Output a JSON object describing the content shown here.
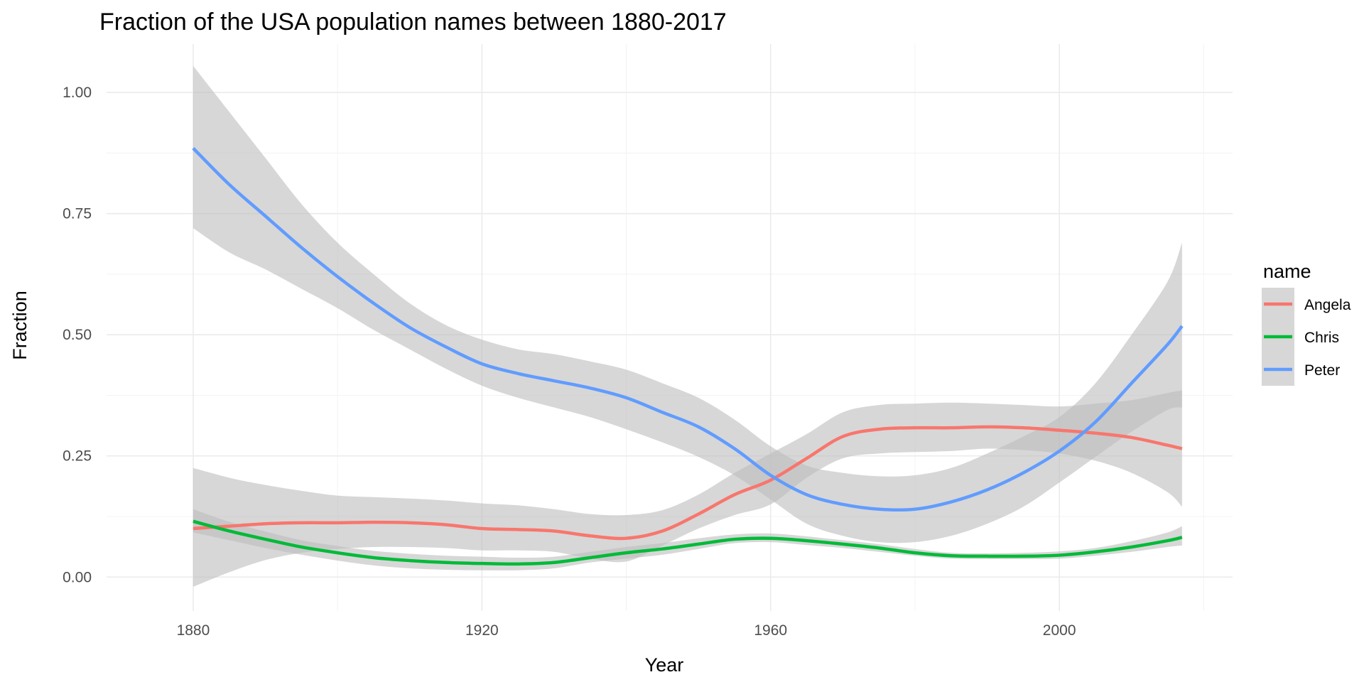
{
  "chart_data": {
    "type": "line",
    "title": "Fraction of the USA population names between 1880-2017",
    "xlabel": "Year",
    "ylabel": "Fraction",
    "xlim": [
      1868,
      2024
    ],
    "ylim": [
      -0.07,
      1.1
    ],
    "x_ticks": [
      1880,
      1920,
      1960,
      2000
    ],
    "x_minor_ticks": [
      1900,
      1940,
      1980,
      2020
    ],
    "y_ticks": [
      0,
      0.25,
      0.5,
      0.75,
      1.0
    ],
    "y_minor_ticks": [
      0.125,
      0.375,
      0.625,
      0.875
    ],
    "x_tick_labels": [
      "1880",
      "1920",
      "1960",
      "2000"
    ],
    "y_tick_labels": [
      "0.00",
      "0.25",
      "0.50",
      "0.75",
      "1.00"
    ],
    "grid": true,
    "confidence_band": true,
    "band_color": "#bdbdbd",
    "legend": {
      "title": "name",
      "position": "right"
    },
    "x": [
      1880,
      1885,
      1890,
      1895,
      1900,
      1905,
      1910,
      1915,
      1920,
      1925,
      1930,
      1935,
      1940,
      1945,
      1950,
      1955,
      1960,
      1965,
      1970,
      1975,
      1980,
      1985,
      1990,
      1995,
      2000,
      2005,
      2010,
      2015,
      2017
    ],
    "series": [
      {
        "name": "Angela",
        "color": "#f8766d",
        "values": [
          0.1,
          0.105,
          0.11,
          0.112,
          0.112,
          0.113,
          0.112,
          0.108,
          0.1,
          0.098,
          0.095,
          0.085,
          0.08,
          0.095,
          0.13,
          0.17,
          0.2,
          0.245,
          0.29,
          0.305,
          0.308,
          0.308,
          0.31,
          0.308,
          0.303,
          0.297,
          0.288,
          0.272,
          0.265
        ],
        "lower": [
          -0.02,
          0.01,
          0.035,
          0.05,
          0.058,
          0.062,
          0.062,
          0.06,
          0.055,
          0.055,
          0.052,
          0.038,
          0.032,
          0.065,
          0.1,
          0.128,
          0.15,
          0.205,
          0.245,
          0.255,
          0.258,
          0.26,
          0.265,
          0.262,
          0.255,
          0.24,
          0.215,
          0.175,
          0.145
        ],
        "upper": [
          0.225,
          0.205,
          0.19,
          0.178,
          0.168,
          0.165,
          0.162,
          0.158,
          0.152,
          0.148,
          0.14,
          0.13,
          0.128,
          0.138,
          0.17,
          0.215,
          0.255,
          0.295,
          0.34,
          0.355,
          0.358,
          0.36,
          0.358,
          0.355,
          0.352,
          0.358,
          0.365,
          0.38,
          0.385
        ]
      },
      {
        "name": "Chris",
        "color": "#00ba38",
        "values": [
          0.115,
          0.095,
          0.078,
          0.062,
          0.05,
          0.04,
          0.034,
          0.03,
          0.028,
          0.027,
          0.03,
          0.04,
          0.05,
          0.058,
          0.068,
          0.078,
          0.08,
          0.075,
          0.068,
          0.06,
          0.05,
          0.044,
          0.043,
          0.043,
          0.045,
          0.052,
          0.062,
          0.075,
          0.082
        ],
        "lower": [
          0.092,
          0.076,
          0.06,
          0.046,
          0.034,
          0.024,
          0.018,
          0.015,
          0.014,
          0.014,
          0.018,
          0.03,
          0.038,
          0.046,
          0.058,
          0.07,
          0.072,
          0.066,
          0.06,
          0.052,
          0.044,
          0.038,
          0.037,
          0.037,
          0.038,
          0.044,
          0.052,
          0.062,
          0.065
        ],
        "upper": [
          0.14,
          0.114,
          0.094,
          0.076,
          0.064,
          0.054,
          0.048,
          0.044,
          0.042,
          0.04,
          0.042,
          0.052,
          0.062,
          0.07,
          0.08,
          0.088,
          0.09,
          0.084,
          0.076,
          0.068,
          0.058,
          0.05,
          0.049,
          0.05,
          0.053,
          0.06,
          0.074,
          0.092,
          0.105
        ]
      },
      {
        "name": "Peter",
        "color": "#619cff",
        "values": [
          0.885,
          0.81,
          0.745,
          0.68,
          0.62,
          0.565,
          0.515,
          0.475,
          0.44,
          0.42,
          0.405,
          0.39,
          0.37,
          0.34,
          0.31,
          0.265,
          0.21,
          0.17,
          0.15,
          0.14,
          0.14,
          0.155,
          0.18,
          0.215,
          0.26,
          0.32,
          0.4,
          0.48,
          0.518
        ],
        "lower": [
          0.72,
          0.67,
          0.635,
          0.595,
          0.555,
          0.51,
          0.47,
          0.43,
          0.395,
          0.37,
          0.35,
          0.33,
          0.305,
          0.278,
          0.248,
          0.21,
          0.16,
          0.11,
          0.085,
          0.072,
          0.072,
          0.085,
          0.11,
          0.145,
          0.195,
          0.248,
          0.3,
          0.345,
          0.35
        ],
        "upper": [
          1.055,
          0.96,
          0.865,
          0.77,
          0.69,
          0.625,
          0.565,
          0.52,
          0.49,
          0.47,
          0.46,
          0.445,
          0.428,
          0.4,
          0.37,
          0.325,
          0.27,
          0.23,
          0.215,
          0.208,
          0.21,
          0.225,
          0.255,
          0.29,
          0.33,
          0.4,
          0.5,
          0.61,
          0.69
        ]
      }
    ]
  }
}
